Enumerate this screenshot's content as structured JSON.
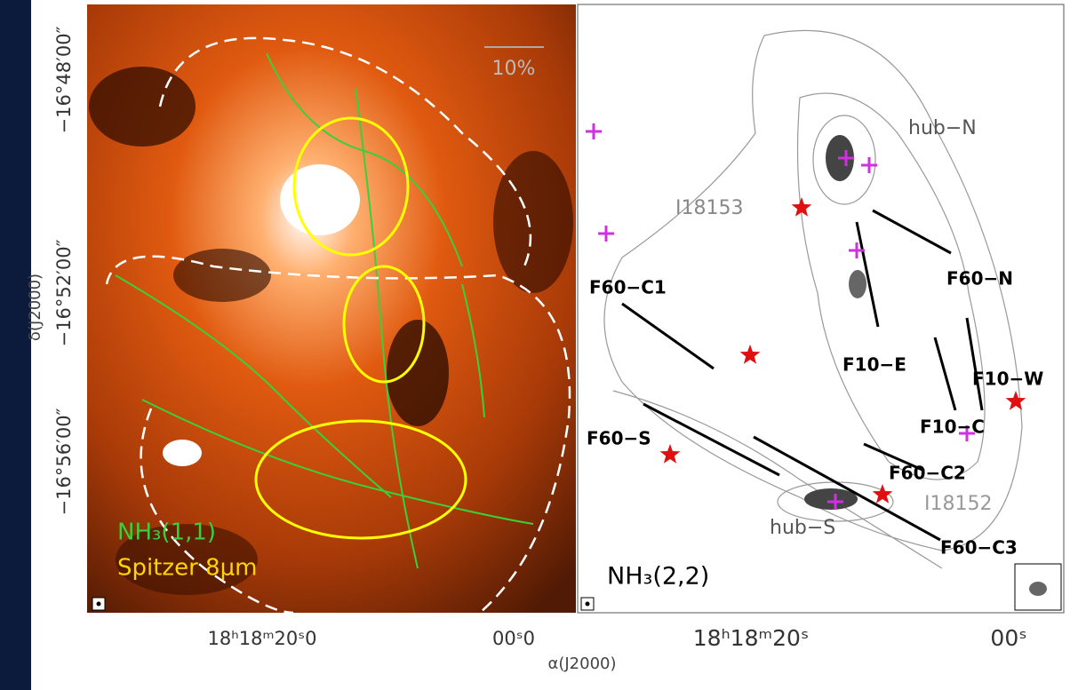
{
  "left_panel": {
    "scale_bar_label": "10%",
    "legend_line1": "NH₃(1,1)",
    "legend_line2": "Spitzer 8μm"
  },
  "right_panel": {
    "label": "NH₃(2,2)",
    "annotations": [
      "hub−N",
      "I18153",
      "F60−C1",
      "F60−N",
      "F10−E",
      "F10−W",
      "F10−C",
      "F60−S",
      "F60−C2",
      "I18152",
      "hub−S",
      "F60−C3"
    ]
  },
  "y_axis": {
    "label": "δ(J2000)",
    "ticks": [
      "−16°48′00″",
      "−16°52′00″",
      "−16°56′00″"
    ]
  },
  "x_axis": {
    "label": "α(J2000)",
    "left_ticks": [
      "18ʰ18ᵐ20ˢ0",
      "00ˢ0"
    ],
    "right_ticks": [
      "18ʰ18ᵐ20ˢ",
      "00ˢ"
    ]
  }
}
